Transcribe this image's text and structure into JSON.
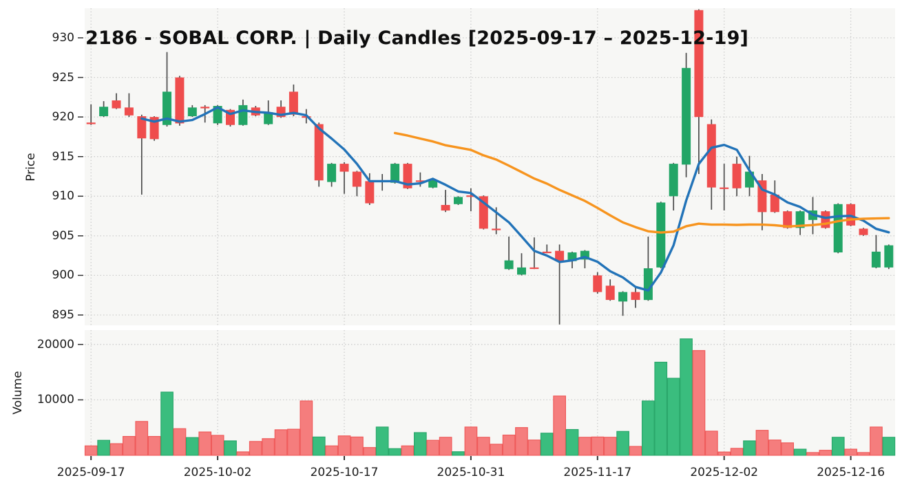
{
  "title": "2186 - SOBAL CORP. | Daily Candles [2025-09-17 – 2025-12-19]",
  "colors": {
    "up": "#22a566",
    "down": "#ef4d4d",
    "up_volume": "#3abd7e",
    "up_volume_edge": "#2aa76b",
    "down_volume": "#f57d7d",
    "down_volume_edge": "#ef5a5a",
    "sma5": "#2273b8",
    "sma25": "#f7941e",
    "wick": "#4a4a4a",
    "grid": "#cccccc",
    "plot_bg": "#f7f7f5",
    "tick_mark": "#333333",
    "text": "#1a1a1a"
  },
  "chart_data": {
    "type": "candlestick",
    "panels": [
      "price",
      "volume"
    ],
    "title": "2186 - SOBAL CORP. | Daily Candles [2025-09-17 – 2025-12-19]",
    "ylabel_price": "Price",
    "ylabel_volume": "Volume",
    "grid": "dotted",
    "price_ylim": [
      893.7,
      933.7
    ],
    "volume_ylim": [
      0,
      22600
    ],
    "price_ticks": [
      930,
      925,
      920,
      915,
      910,
      905,
      900,
      895
    ],
    "volume_ticks": [
      20000,
      10000
    ],
    "x_ticks": {
      "indices": [
        0,
        10,
        20,
        30,
        40,
        50,
        60
      ],
      "labels": [
        "2025-09-17",
        "2025-10-02",
        "2025-10-17",
        "2025-10-31",
        "2025-11-17",
        "2025-12-02",
        "2025-12-16"
      ]
    },
    "moving_averages": [
      {
        "name": "SMA-5",
        "window": 5,
        "color_key": "sma5"
      },
      {
        "name": "SMA-25",
        "window": 25,
        "color_key": "sma25"
      }
    ],
    "candles": {
      "columns": [
        "date",
        "open",
        "high",
        "low",
        "close",
        "volume",
        "volume_up"
      ],
      "rows": [
        [
          "2025-09-17",
          919.3,
          921.6,
          919.0,
          919.1,
          1700,
          false
        ],
        [
          "2025-09-18",
          920.1,
          922.0,
          920.0,
          921.3,
          2700,
          true
        ],
        [
          "2025-09-19",
          922.1,
          923.0,
          921.0,
          921.1,
          2100,
          false
        ],
        [
          "2025-09-22",
          921.2,
          923.0,
          920.0,
          920.2,
          3400,
          false
        ],
        [
          "2025-09-24",
          920.1,
          920.3,
          910.2,
          917.3,
          6100,
          false
        ],
        [
          "2025-09-25",
          920.0,
          920.1,
          917.0,
          917.2,
          3400,
          false
        ],
        [
          "2025-09-26",
          919.0,
          928.2,
          918.8,
          923.2,
          11400,
          true
        ],
        [
          "2025-09-29",
          925.0,
          925.2,
          918.9,
          919.2,
          4800,
          false
        ],
        [
          "2025-09-30",
          920.1,
          921.5,
          920.0,
          921.2,
          3200,
          true
        ],
        [
          "2025-10-01",
          921.3,
          921.5,
          919.3,
          921.1,
          4200,
          false
        ],
        [
          "2025-10-02",
          919.2,
          921.5,
          919.0,
          921.4,
          3600,
          false
        ],
        [
          "2025-10-03",
          920.9,
          921.0,
          918.8,
          919.0,
          2600,
          true
        ],
        [
          "2025-10-06",
          919.0,
          922.2,
          918.9,
          921.5,
          620,
          false
        ],
        [
          "2025-10-07",
          921.2,
          921.4,
          920.1,
          920.2,
          2500,
          false
        ],
        [
          "2025-10-08",
          919.1,
          922.1,
          919.0,
          920.6,
          3000,
          false
        ],
        [
          "2025-10-09",
          921.3,
          922.1,
          919.9,
          920.0,
          4600,
          false
        ],
        [
          "2025-10-10",
          923.2,
          924.1,
          920.1,
          920.3,
          4700,
          false
        ],
        [
          "2025-10-14",
          920.1,
          921.0,
          919.2,
          920.0,
          9800,
          false
        ],
        [
          "2025-10-15",
          919.1,
          919.3,
          911.2,
          912.0,
          3300,
          true
        ],
        [
          "2025-10-16",
          911.8,
          914.2,
          911.2,
          914.1,
          1700,
          false
        ],
        [
          "2025-10-17",
          914.1,
          914.3,
          910.3,
          913.1,
          3500,
          false
        ],
        [
          "2025-10-20",
          913.1,
          913.2,
          910.0,
          911.2,
          3300,
          false
        ],
        [
          "2025-10-21",
          911.9,
          912.9,
          908.9,
          909.1,
          1400,
          false
        ],
        [
          "2025-10-22",
          911.9,
          912.8,
          910.7,
          912.0,
          5100,
          true
        ],
        [
          "2025-10-23",
          911.7,
          914.2,
          911.6,
          914.1,
          1200,
          true
        ],
        [
          "2025-10-24",
          914.1,
          914.2,
          910.9,
          911.0,
          1700,
          false
        ],
        [
          "2025-10-27",
          912.0,
          913.0,
          911.2,
          911.9,
          4100,
          true
        ],
        [
          "2025-10-28",
          911.1,
          912.1,
          911.0,
          912.0,
          2700,
          false
        ],
        [
          "2025-10-29",
          908.9,
          910.8,
          908.0,
          908.2,
          3250,
          false
        ],
        [
          "2025-10-30",
          909.0,
          910.0,
          908.9,
          909.9,
          650,
          true
        ],
        [
          "2025-10-31",
          910.1,
          911.0,
          908.1,
          910.0,
          5100,
          false
        ],
        [
          "2025-11-04",
          910.0,
          910.1,
          905.8,
          905.9,
          3250,
          false
        ],
        [
          "2025-11-05",
          905.9,
          908.6,
          905.2,
          905.8,
          2000,
          false
        ],
        [
          "2025-11-06",
          900.8,
          904.9,
          900.7,
          901.9,
          3650,
          false
        ],
        [
          "2025-11-07",
          900.1,
          902.8,
          900.0,
          901.0,
          5000,
          false
        ],
        [
          "2025-11-10",
          901.0,
          904.8,
          900.8,
          900.9,
          2750,
          false
        ],
        [
          "2025-11-11",
          903.0,
          903.9,
          902.8,
          902.9,
          4000,
          true
        ],
        [
          "2025-11-12",
          903.1,
          903.9,
          893.8,
          901.8,
          10700,
          false
        ],
        [
          "2025-11-13",
          901.8,
          903.0,
          900.9,
          902.9,
          4650,
          true
        ],
        [
          "2025-11-14",
          902.0,
          903.2,
          900.9,
          903.1,
          3250,
          false
        ],
        [
          "2025-11-17",
          900.0,
          900.4,
          897.7,
          897.9,
          3300,
          false
        ],
        [
          "2025-11-18",
          898.7,
          899.5,
          896.8,
          896.9,
          3250,
          false
        ],
        [
          "2025-11-19",
          896.7,
          898.0,
          894.9,
          897.9,
          4300,
          true
        ],
        [
          "2025-11-20",
          897.9,
          898.6,
          895.9,
          896.9,
          1600,
          false
        ],
        [
          "2025-11-21",
          896.9,
          904.9,
          896.8,
          900.9,
          9800,
          true
        ],
        [
          "2025-11-25",
          901.0,
          909.3,
          900.9,
          909.2,
          16800,
          true
        ],
        [
          "2025-11-26",
          910.0,
          914.2,
          908.2,
          914.1,
          13900,
          true
        ],
        [
          "2025-11-27",
          914.0,
          928.1,
          912.4,
          926.2,
          21000,
          true
        ],
        [
          "2025-11-28",
          933.5,
          933.6,
          912.8,
          920.0,
          18900,
          false
        ],
        [
          "2025-12-01",
          919.1,
          919.7,
          908.3,
          911.1,
          4350,
          false
        ],
        [
          "2025-12-02",
          911.1,
          914.1,
          908.2,
          911.0,
          600,
          false
        ],
        [
          "2025-12-03",
          914.1,
          915.0,
          910.0,
          911.0,
          1250,
          false
        ],
        [
          "2025-12-04",
          911.1,
          915.1,
          910.0,
          913.1,
          2600,
          true
        ],
        [
          "2025-12-05",
          912.0,
          912.8,
          905.7,
          908.0,
          4500,
          false
        ],
        [
          "2025-12-08",
          910.2,
          912.0,
          907.9,
          908.0,
          2750,
          false
        ],
        [
          "2025-12-09",
          908.1,
          908.2,
          905.9,
          906.0,
          2250,
          false
        ],
        [
          "2025-12-10",
          906.0,
          908.2,
          905.1,
          908.1,
          1100,
          true
        ],
        [
          "2025-12-11",
          907.0,
          909.9,
          905.2,
          908.2,
          500,
          false
        ],
        [
          "2025-12-12",
          908.1,
          908.2,
          905.9,
          906.0,
          900,
          false
        ],
        [
          "2025-12-15",
          902.9,
          909.1,
          902.8,
          909.0,
          3250,
          true
        ],
        [
          "2025-12-16",
          909.0,
          909.1,
          906.2,
          906.3,
          1100,
          false
        ],
        [
          "2025-12-17",
          905.9,
          906.0,
          905.0,
          905.1,
          500,
          false
        ],
        [
          "2025-12-18",
          901.0,
          905.1,
          900.9,
          903.0,
          5100,
          false
        ],
        [
          "2025-12-19",
          901.0,
          903.9,
          900.8,
          903.8,
          3250,
          true
        ]
      ]
    }
  }
}
